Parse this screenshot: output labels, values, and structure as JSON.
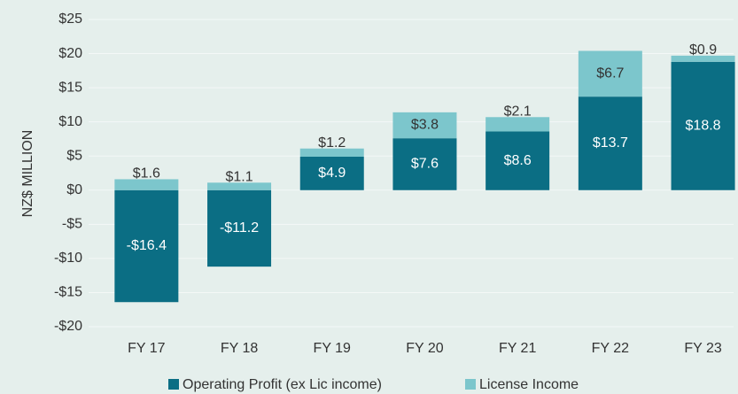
{
  "chart_data": {
    "type": "stacked_bar",
    "y_label": "NZ$ MILLION",
    "categories": [
      "FY 17",
      "FY 18",
      "FY 19",
      "FY 20",
      "FY 21",
      "FY 22",
      "FY 23"
    ],
    "series": [
      {
        "name": "Operating Profit (ex Lic income)",
        "color": "#0b6e84",
        "values": [
          -16.4,
          -11.2,
          4.9,
          7.6,
          8.6,
          13.7,
          18.8
        ],
        "value_labels": [
          "-$16.4",
          "-$11.2",
          "$4.9",
          "$7.6",
          "$8.6",
          "$13.7",
          "$18.8"
        ]
      },
      {
        "name": "License Income",
        "color": "#7cc6cc",
        "values": [
          1.6,
          1.1,
          1.2,
          3.8,
          2.1,
          6.7,
          0.9
        ],
        "value_labels": [
          "$1.6",
          "$1.1",
          "$1.2",
          "$3.8",
          "$2.1",
          "$6.7",
          "$0.9"
        ]
      }
    ],
    "ylim": [
      -20,
      25
    ],
    "yticks": [
      {
        "value": -20,
        "label": "-$20"
      },
      {
        "value": -15,
        "label": "-$15"
      },
      {
        "value": -10,
        "label": "-$10"
      },
      {
        "value": -5,
        "label": "-$5"
      },
      {
        "value": 0,
        "label": "$0"
      },
      {
        "value": 5,
        "label": "$5"
      },
      {
        "value": 10,
        "label": "$10"
      },
      {
        "value": 15,
        "label": "$15"
      },
      {
        "value": 20,
        "label": "$20"
      },
      {
        "value": 25,
        "label": "$25"
      }
    ],
    "grid": true,
    "legend": "bottom"
  }
}
